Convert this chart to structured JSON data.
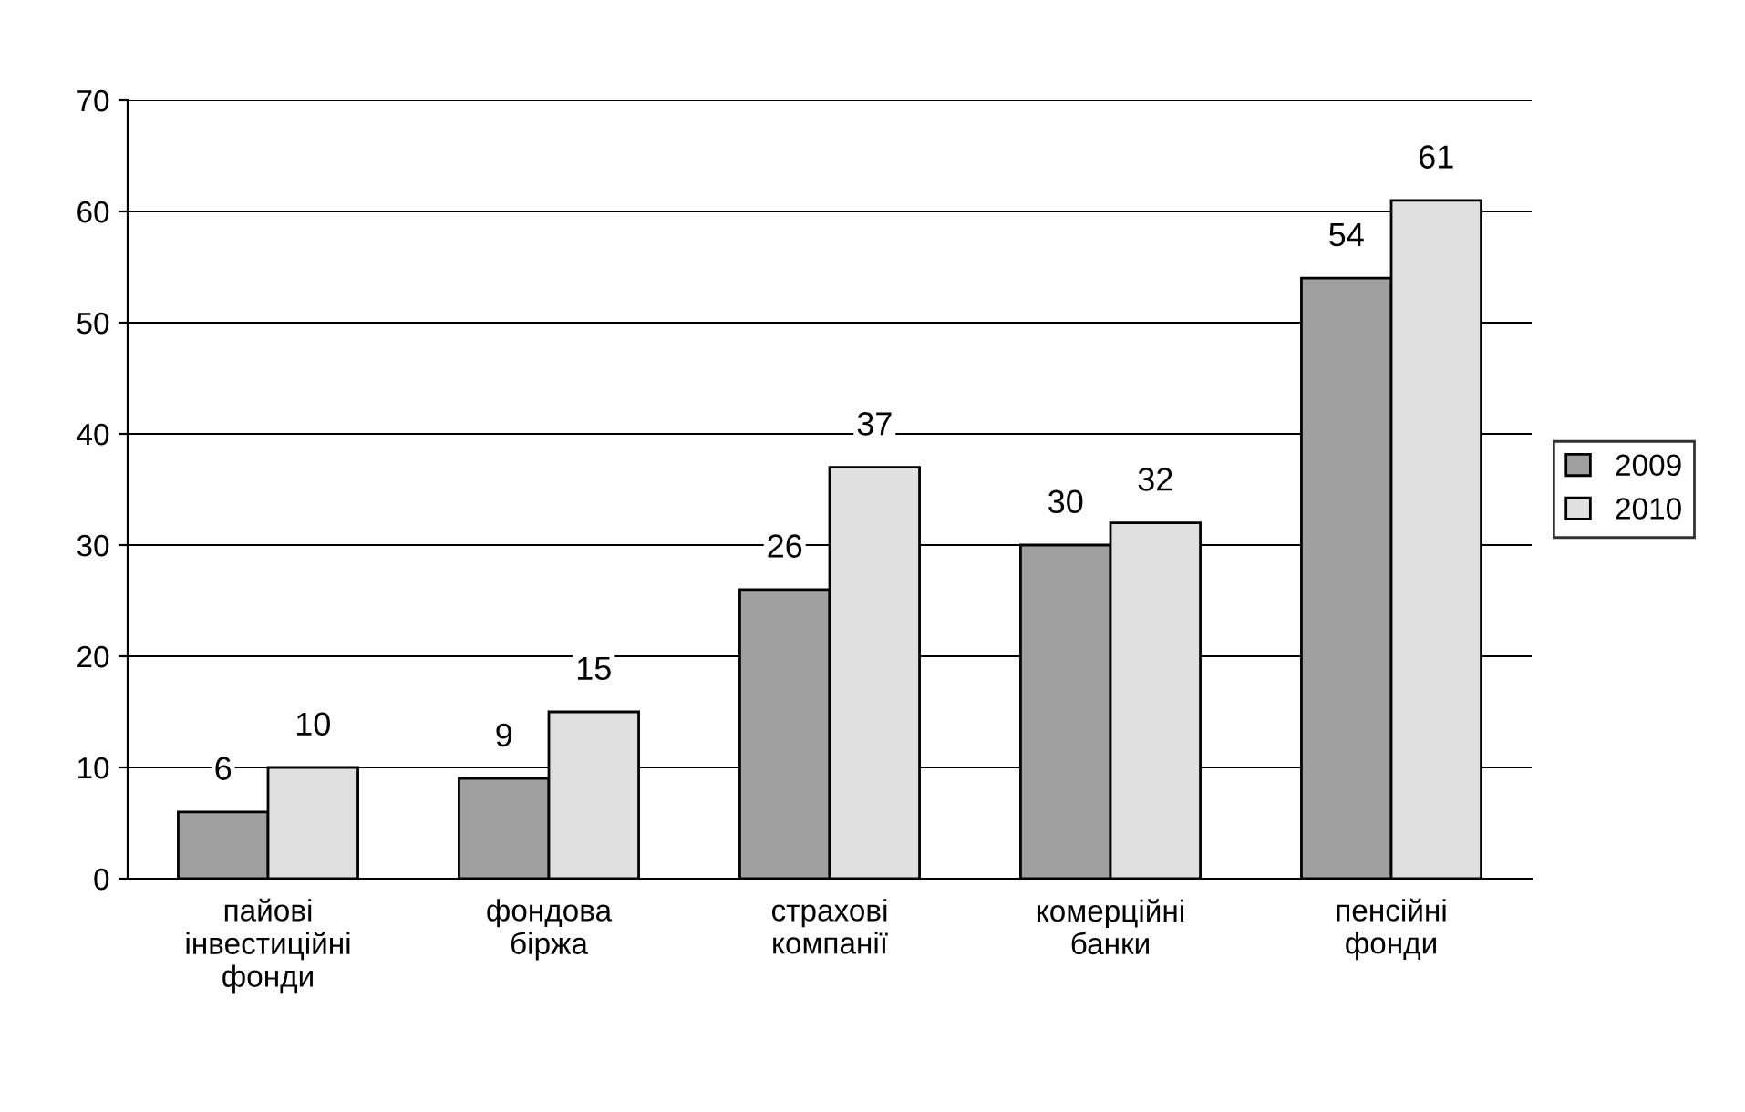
{
  "chart_data": {
    "type": "bar",
    "categories": [
      "пайові\nінвестиційні\nфонди",
      "фондова\nбіржа",
      "страхові\nкомпанії",
      "комерційні\nбанки",
      "пенсійні\nфонди"
    ],
    "series": [
      {
        "name": "2009",
        "color": "#a0a0a0",
        "values": [
          6,
          9,
          26,
          30,
          54
        ]
      },
      {
        "name": "2010",
        "color": "#e0e0e0",
        "values": [
          10,
          15,
          37,
          32,
          61
        ]
      }
    ],
    "ylim": [
      0,
      70
    ],
    "yticks": [
      0,
      10,
      20,
      30,
      40,
      50,
      60,
      70
    ],
    "grid": "y",
    "legend": "right",
    "data_labels": true
  }
}
